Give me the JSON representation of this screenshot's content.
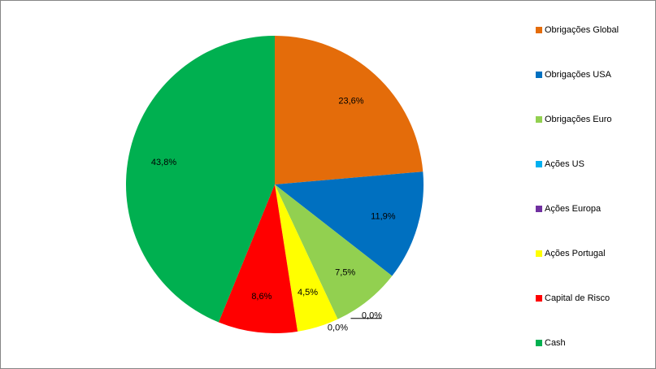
{
  "chart_data": {
    "type": "pie",
    "categories": [
      "Obrigações Global",
      "Obrigações USA",
      "Obrigações Euro",
      "Ações US",
      "Ações Europa",
      "Ações Portugal",
      "Capital de Risco",
      "Cash"
    ],
    "values": [
      23.6,
      11.9,
      7.5,
      0.0,
      0.0,
      4.5,
      8.6,
      43.8
    ],
    "value_labels": [
      "23,6%",
      "11,9%",
      "7,5%",
      "0,0%",
      "0,0%",
      "4,5%",
      "8,6%",
      "43,8%"
    ],
    "colors": [
      "#e46c0a",
      "#0070c0",
      "#92d050",
      "#00b0f0",
      "#7030a0",
      "#ffff00",
      "#ff0000",
      "#00b050"
    ],
    "legend": "right"
  }
}
